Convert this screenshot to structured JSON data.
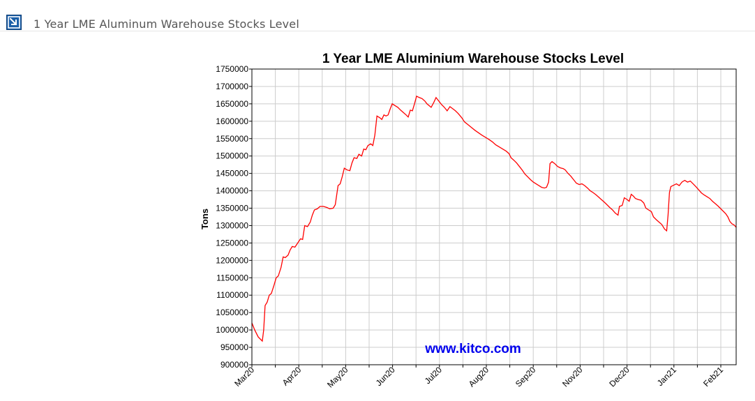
{
  "header": {
    "title": "1 Year LME Aluminum Warehouse Stocks Level",
    "icon": "collapse-arrow-icon",
    "icon_color": "#1b5fa8"
  },
  "chart_data": {
    "type": "line",
    "title": "1 Year LME Aluminium Warehouse Stocks Level",
    "xlabel": "",
    "ylabel": "Tons",
    "watermark": "www.kitco.com",
    "ylim": [
      900000,
      1750000
    ],
    "y_ticks": [
      900000,
      950000,
      1000000,
      1050000,
      1100000,
      1150000,
      1200000,
      1250000,
      1300000,
      1350000,
      1400000,
      1450000,
      1500000,
      1550000,
      1600000,
      1650000,
      1700000,
      1750000
    ],
    "y_tick_labels": [
      "900000",
      "950000",
      "1000000",
      "1050000",
      "1100000",
      "1150000",
      "1200000",
      "1250000",
      "1300000",
      "1350000",
      "1400000",
      "1450000",
      "1500000",
      "1550000",
      "1600000",
      "1650000",
      "1700000",
      "1750000"
    ],
    "x_tick_labels": [
      "Mar20",
      "Apr20",
      "May20",
      "Jun20",
      "Jul20",
      "Aug20",
      "Sep20",
      "Nov20",
      "Dec20",
      "Jan21",
      "Feb21"
    ],
    "grid": true,
    "line_color": "#ff0000",
    "series": [
      {
        "values": [
          [
            0,
            1020000
          ],
          [
            4,
            1000000
          ],
          [
            9,
            980000
          ],
          [
            15,
            968000
          ],
          [
            17,
            1000000
          ],
          [
            19,
            1070000
          ],
          [
            22,
            1080000
          ],
          [
            25,
            1100000
          ],
          [
            28,
            1105000
          ],
          [
            32,
            1130000
          ],
          [
            35,
            1150000
          ],
          [
            38,
            1155000
          ],
          [
            42,
            1180000
          ],
          [
            45,
            1210000
          ],
          [
            48,
            1208000
          ],
          [
            52,
            1215000
          ],
          [
            55,
            1230000
          ],
          [
            58,
            1240000
          ],
          [
            62,
            1238000
          ],
          [
            66,
            1250000
          ],
          [
            70,
            1262000
          ],
          [
            73,
            1260000
          ],
          [
            76,
            1300000
          ],
          [
            80,
            1297000
          ],
          [
            84,
            1310000
          ],
          [
            87,
            1330000
          ],
          [
            90,
            1345000
          ],
          [
            94,
            1348000
          ],
          [
            98,
            1355000
          ],
          [
            103,
            1355000
          ],
          [
            108,
            1352000
          ],
          [
            112,
            1348000
          ],
          [
            117,
            1350000
          ],
          [
            120,
            1360000
          ],
          [
            124,
            1415000
          ],
          [
            127,
            1420000
          ],
          [
            130,
            1440000
          ],
          [
            133,
            1465000
          ],
          [
            137,
            1460000
          ],
          [
            141,
            1458000
          ],
          [
            144,
            1480000
          ],
          [
            147,
            1495000
          ],
          [
            151,
            1493000
          ],
          [
            154,
            1505000
          ],
          [
            158,
            1500000
          ],
          [
            161,
            1520000
          ],
          [
            164,
            1518000
          ],
          [
            167,
            1530000
          ],
          [
            171,
            1535000
          ],
          [
            174,
            1530000
          ],
          [
            177,
            1560000
          ],
          [
            180,
            1615000
          ],
          [
            184,
            1610000
          ],
          [
            187,
            1605000
          ],
          [
            190,
            1618000
          ],
          [
            193,
            1615000
          ],
          [
            196,
            1618000
          ],
          [
            199,
            1635000
          ],
          [
            202,
            1650000
          ],
          [
            206,
            1645000
          ],
          [
            210,
            1640000
          ],
          [
            214,
            1632000
          ],
          [
            218,
            1625000
          ],
          [
            222,
            1618000
          ],
          [
            225,
            1612000
          ],
          [
            228,
            1632000
          ],
          [
            231,
            1630000
          ],
          [
            234,
            1650000
          ],
          [
            237,
            1672000
          ],
          [
            241,
            1668000
          ],
          [
            245,
            1665000
          ],
          [
            249,
            1658000
          ],
          [
            252,
            1650000
          ],
          [
            255,
            1645000
          ],
          [
            258,
            1640000
          ],
          [
            262,
            1655000
          ],
          [
            265,
            1668000
          ],
          [
            269,
            1658000
          ],
          [
            273,
            1648000
          ],
          [
            277,
            1640000
          ],
          [
            281,
            1630000
          ],
          [
            285,
            1642000
          ],
          [
            289,
            1636000
          ],
          [
            293,
            1630000
          ],
          [
            297,
            1622000
          ],
          [
            302,
            1610000
          ],
          [
            306,
            1598000
          ],
          [
            311,
            1590000
          ],
          [
            316,
            1582000
          ],
          [
            321,
            1574000
          ],
          [
            326,
            1567000
          ],
          [
            331,
            1560000
          ],
          [
            336,
            1554000
          ],
          [
            341,
            1548000
          ],
          [
            346,
            1541000
          ],
          [
            351,
            1532000
          ],
          [
            356,
            1526000
          ],
          [
            361,
            1520000
          ],
          [
            366,
            1514000
          ],
          [
            370,
            1507000
          ],
          [
            373,
            1495000
          ],
          [
            377,
            1488000
          ],
          [
            381,
            1480000
          ],
          [
            385,
            1470000
          ],
          [
            389,
            1460000
          ],
          [
            393,
            1448000
          ],
          [
            397,
            1440000
          ],
          [
            401,
            1432000
          ],
          [
            405,
            1425000
          ],
          [
            409,
            1420000
          ],
          [
            413,
            1415000
          ],
          [
            417,
            1410000
          ],
          [
            421,
            1408000
          ],
          [
            424,
            1410000
          ],
          [
            427,
            1425000
          ],
          [
            429,
            1478000
          ],
          [
            432,
            1484000
          ],
          [
            436,
            1478000
          ],
          [
            440,
            1470000
          ],
          [
            444,
            1466000
          ],
          [
            448,
            1464000
          ],
          [
            451,
            1460000
          ],
          [
            455,
            1450000
          ],
          [
            459,
            1442000
          ],
          [
            463,
            1432000
          ],
          [
            467,
            1422000
          ],
          [
            471,
            1418000
          ],
          [
            475,
            1420000
          ],
          [
            479,
            1415000
          ],
          [
            483,
            1408000
          ],
          [
            487,
            1400000
          ],
          [
            491,
            1395000
          ],
          [
            495,
            1389000
          ],
          [
            499,
            1382000
          ],
          [
            503,
            1375000
          ],
          [
            507,
            1368000
          ],
          [
            511,
            1360000
          ],
          [
            515,
            1352000
          ],
          [
            519,
            1345000
          ],
          [
            523,
            1336000
          ],
          [
            527,
            1330000
          ],
          [
            529,
            1355000
          ],
          [
            533,
            1358000
          ],
          [
            536,
            1380000
          ],
          [
            540,
            1375000
          ],
          [
            543,
            1370000
          ],
          [
            546,
            1390000
          ],
          [
            549,
            1385000
          ],
          [
            552,
            1378000
          ],
          [
            556,
            1375000
          ],
          [
            560,
            1373000
          ],
          [
            564,
            1365000
          ],
          [
            567,
            1350000
          ],
          [
            571,
            1345000
          ],
          [
            575,
            1340000
          ],
          [
            578,
            1325000
          ],
          [
            582,
            1317000
          ],
          [
            586,
            1310000
          ],
          [
            590,
            1303000
          ],
          [
            594,
            1290000
          ],
          [
            597,
            1285000
          ],
          [
            599,
            1330000
          ],
          [
            601,
            1395000
          ],
          [
            603,
            1412000
          ],
          [
            607,
            1416000
          ],
          [
            611,
            1420000
          ],
          [
            615,
            1415000
          ],
          [
            619,
            1425000
          ],
          [
            623,
            1430000
          ],
          [
            627,
            1425000
          ],
          [
            631,
            1428000
          ],
          [
            635,
            1420000
          ],
          [
            639,
            1412000
          ],
          [
            643,
            1403000
          ],
          [
            647,
            1394000
          ],
          [
            651,
            1388000
          ],
          [
            655,
            1383000
          ],
          [
            659,
            1378000
          ],
          [
            663,
            1370000
          ],
          [
            667,
            1363000
          ],
          [
            671,
            1356000
          ],
          [
            675,
            1348000
          ],
          [
            679,
            1340000
          ],
          [
            682,
            1334000
          ],
          [
            685,
            1325000
          ],
          [
            688,
            1312000
          ],
          [
            691,
            1305000
          ],
          [
            694,
            1302000
          ],
          [
            697,
            1295000
          ]
        ]
      }
    ]
  }
}
